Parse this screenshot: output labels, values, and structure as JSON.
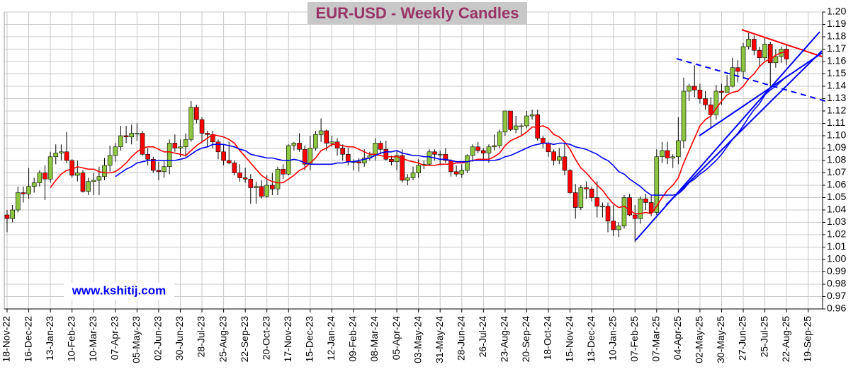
{
  "chart_data": {
    "type": "candlestick",
    "title": "EUR-USD - Weekly Candles",
    "watermark": "www.kshitij.com",
    "up_color": "#8dc63f",
    "down_color": "#ff0000",
    "grid": true,
    "ylim": [
      0.96,
      1.2
    ],
    "yticks": [
      0.96,
      0.97,
      0.98,
      0.99,
      {
        "value": 1,
        "label": "1.00"
      },
      1.01,
      1.02,
      1.03,
      1.04,
      1.05,
      1.06,
      1.07,
      1.08,
      1.09,
      {
        "value": 1.1,
        "label": "1.10"
      },
      1.11,
      1.12,
      1.13,
      1.14,
      1.15,
      1.16,
      1.17,
      1.18,
      1.19,
      {
        "value": 1.2,
        "label": "1.20"
      }
    ],
    "categories": [
      "18-Nov-22",
      null,
      null,
      null,
      "16-Dec-22",
      null,
      null,
      null,
      "13-Jan-23",
      null,
      null,
      null,
      "10-Feb-23",
      null,
      null,
      null,
      "10-Mar-23",
      null,
      null,
      null,
      "07-Apr-23",
      null,
      null,
      null,
      "05-May-23",
      null,
      null,
      null,
      "02-Jun-23",
      null,
      null,
      null,
      "30-Jun-23",
      null,
      null,
      null,
      "28-Jul-23",
      null,
      null,
      null,
      "25-Aug-23",
      null,
      null,
      null,
      "22-Sep-23",
      null,
      null,
      null,
      "20-Oct-23",
      null,
      null,
      null,
      "17-Nov-23",
      null,
      null,
      null,
      "15-Dec-23",
      null,
      null,
      null,
      "12-Jan-24",
      null,
      null,
      null,
      "09-Feb-24",
      null,
      null,
      null,
      "08-Mar-24",
      null,
      null,
      null,
      "05-Apr-24",
      null,
      null,
      null,
      "03-May-24",
      null,
      null,
      null,
      "31-May-24",
      null,
      null,
      null,
      "28-Jun-24",
      null,
      null,
      null,
      "26-Jul-24",
      null,
      null,
      null,
      "23-Aug-24",
      null,
      null,
      null,
      "20-Sep-24",
      null,
      null,
      null,
      "18-Oct-24",
      null,
      null,
      null,
      "15-Nov-24",
      null,
      null,
      null,
      "13-Dec-24",
      null,
      null,
      null,
      "10-Jan-25",
      null,
      null,
      null,
      "07-Feb-25",
      null,
      null,
      null,
      "07-Mar-25",
      null,
      null,
      null,
      "04-Apr-25",
      null,
      null,
      null,
      "02-May-25",
      null,
      null,
      null,
      "30-May-25",
      null,
      null,
      null,
      "27-Jun-25",
      null,
      null,
      null,
      "25-Jul-25",
      null,
      null,
      null,
      "22-Aug-25",
      null,
      null,
      null,
      "19-Sep-25"
    ],
    "ohlc": [
      [
        1.036,
        1.04,
        1.022,
        1.033
      ],
      [
        1.033,
        1.044,
        1.03,
        1.04
      ],
      [
        1.04,
        1.059,
        1.038,
        1.054
      ],
      [
        1.054,
        1.059,
        1.046,
        1.053
      ],
      [
        1.053,
        1.074,
        1.049,
        1.059
      ],
      [
        1.059,
        1.066,
        1.054,
        1.062
      ],
      [
        1.062,
        1.072,
        1.059,
        1.07
      ],
      [
        1.07,
        1.076,
        1.048,
        1.065
      ],
      [
        1.065,
        1.087,
        1.062,
        1.083
      ],
      [
        1.083,
        1.093,
        1.077,
        1.086
      ],
      [
        1.086,
        1.093,
        1.08,
        1.087
      ],
      [
        1.087,
        1.103,
        1.078,
        1.08
      ],
      [
        1.08,
        1.081,
        1.066,
        1.068
      ],
      [
        1.068,
        1.08,
        1.063,
        1.07
      ],
      [
        1.07,
        1.072,
        1.054,
        1.055
      ],
      [
        1.055,
        1.066,
        1.052,
        1.063
      ],
      [
        1.063,
        1.07,
        1.052,
        1.064
      ],
      [
        1.064,
        1.075,
        1.052,
        1.067
      ],
      [
        1.067,
        1.082,
        1.064,
        1.076
      ],
      [
        1.076,
        1.092,
        1.071,
        1.084
      ],
      [
        1.084,
        1.094,
        1.079,
        1.091
      ],
      [
        1.091,
        1.108,
        1.088,
        1.1
      ],
      [
        1.1,
        1.108,
        1.094,
        1.099
      ],
      [
        1.099,
        1.109,
        1.093,
        1.102
      ],
      [
        1.102,
        1.11,
        1.096,
        1.102
      ],
      [
        1.102,
        1.104,
        1.084,
        1.085
      ],
      [
        1.085,
        1.09,
        1.076,
        1.081
      ],
      [
        1.081,
        1.083,
        1.07,
        1.072
      ],
      [
        1.072,
        1.079,
        1.064,
        1.071
      ],
      [
        1.071,
        1.08,
        1.066,
        1.075
      ],
      [
        1.075,
        1.097,
        1.069,
        1.094
      ],
      [
        1.094,
        1.101,
        1.087,
        1.09
      ],
      [
        1.09,
        1.097,
        1.083,
        1.091
      ],
      [
        1.091,
        1.102,
        1.083,
        1.097
      ],
      [
        1.097,
        1.128,
        1.095,
        1.123
      ],
      [
        1.123,
        1.125,
        1.11,
        1.113
      ],
      [
        1.113,
        1.115,
        1.094,
        1.102
      ],
      [
        1.102,
        1.104,
        1.091,
        1.101
      ],
      [
        1.101,
        1.104,
        1.09,
        1.095
      ],
      [
        1.095,
        1.097,
        1.081,
        1.087
      ],
      [
        1.087,
        1.093,
        1.076,
        1.08
      ],
      [
        1.08,
        1.095,
        1.077,
        1.078
      ],
      [
        1.078,
        1.08,
        1.068,
        1.07
      ],
      [
        1.07,
        1.077,
        1.063,
        1.066
      ],
      [
        1.066,
        1.074,
        1.062,
        1.065
      ],
      [
        1.065,
        1.069,
        1.045,
        1.058
      ],
      [
        1.058,
        1.063,
        1.045,
        1.059
      ],
      [
        1.059,
        1.064,
        1.049,
        1.051
      ],
      [
        1.051,
        1.068,
        1.05,
        1.06
      ],
      [
        1.06,
        1.07,
        1.052,
        1.057
      ],
      [
        1.057,
        1.075,
        1.052,
        1.073
      ],
      [
        1.073,
        1.077,
        1.065,
        1.069
      ],
      [
        1.069,
        1.093,
        1.068,
        1.092
      ],
      [
        1.092,
        1.095,
        1.088,
        1.094
      ],
      [
        1.094,
        1.102,
        1.087,
        1.089
      ],
      [
        1.089,
        1.092,
        1.072,
        1.077
      ],
      [
        1.077,
        1.1,
        1.072,
        1.09
      ],
      [
        1.09,
        1.104,
        1.088,
        1.101
      ],
      [
        1.101,
        1.114,
        1.095,
        1.104
      ],
      [
        1.104,
        1.105,
        1.088,
        1.094
      ],
      [
        1.094,
        1.1,
        1.091,
        1.095
      ],
      [
        1.095,
        1.098,
        1.084,
        1.09
      ],
      [
        1.09,
        1.093,
        1.08,
        1.085
      ],
      [
        1.085,
        1.09,
        1.076,
        1.079
      ],
      [
        1.079,
        1.081,
        1.072,
        1.079
      ],
      [
        1.079,
        1.082,
        1.071,
        1.078
      ],
      [
        1.078,
        1.089,
        1.075,
        1.082
      ],
      [
        1.082,
        1.087,
        1.08,
        1.084
      ],
      [
        1.084,
        1.098,
        1.08,
        1.094
      ],
      [
        1.094,
        1.096,
        1.085,
        1.089
      ],
      [
        1.089,
        1.096,
        1.08,
        1.081
      ],
      [
        1.081,
        1.084,
        1.076,
        1.079
      ],
      [
        1.079,
        1.088,
        1.072,
        1.084
      ],
      [
        1.084,
        1.089,
        1.062,
        1.064
      ],
      [
        1.064,
        1.069,
        1.06,
        1.066
      ],
      [
        1.066,
        1.075,
        1.064,
        1.07
      ],
      [
        1.07,
        1.081,
        1.066,
        1.076
      ],
      [
        1.076,
        1.08,
        1.073,
        1.077
      ],
      [
        1.077,
        1.089,
        1.076,
        1.087
      ],
      [
        1.087,
        1.089,
        1.08,
        1.085
      ],
      [
        1.085,
        1.088,
        1.076,
        1.085
      ],
      [
        1.085,
        1.09,
        1.078,
        1.08
      ],
      [
        1.08,
        1.081,
        1.067,
        1.071
      ],
      [
        1.071,
        1.076,
        1.067,
        1.069
      ],
      [
        1.069,
        1.077,
        1.066,
        1.072
      ],
      [
        1.072,
        1.085,
        1.07,
        1.084
      ],
      [
        1.084,
        1.093,
        1.079,
        1.091
      ],
      [
        1.091,
        1.095,
        1.086,
        1.088
      ],
      [
        1.088,
        1.09,
        1.08,
        1.086
      ],
      [
        1.086,
        1.093,
        1.078,
        1.091
      ],
      [
        1.091,
        1.101,
        1.088,
        1.092
      ],
      [
        1.092,
        1.105,
        1.09,
        1.103
      ],
      [
        1.103,
        1.12,
        1.1,
        1.12
      ],
      [
        1.12,
        1.12,
        1.104,
        1.105
      ],
      [
        1.105,
        1.116,
        1.102,
        1.108
      ],
      [
        1.108,
        1.11,
        1.1,
        1.108
      ],
      [
        1.108,
        1.12,
        1.106,
        1.116
      ],
      [
        1.116,
        1.121,
        1.113,
        1.117
      ],
      [
        1.117,
        1.121,
        1.096,
        1.098
      ],
      [
        1.098,
        1.1,
        1.09,
        1.094
      ],
      [
        1.094,
        1.095,
        1.083,
        1.087
      ],
      [
        1.087,
        1.089,
        1.076,
        1.08
      ],
      [
        1.08,
        1.09,
        1.077,
        1.083
      ],
      [
        1.083,
        1.094,
        1.068,
        1.072
      ],
      [
        1.072,
        1.073,
        1.053,
        1.054
      ],
      [
        1.054,
        1.061,
        1.033,
        1.042
      ],
      [
        1.042,
        1.06,
        1.04,
        1.058
      ],
      [
        1.058,
        1.063,
        1.049,
        1.057
      ],
      [
        1.057,
        1.059,
        1.047,
        1.05
      ],
      [
        1.05,
        1.063,
        1.034,
        1.043
      ],
      [
        1.043,
        1.046,
        1.034,
        1.043
      ],
      [
        1.043,
        1.046,
        1.022,
        1.031
      ],
      [
        1.031,
        1.044,
        1.019,
        1.024
      ],
      [
        1.024,
        1.03,
        1.018,
        1.027
      ],
      [
        1.027,
        1.052,
        1.025,
        1.05
      ],
      [
        1.05,
        1.053,
        1.035,
        1.036
      ],
      [
        1.036,
        1.044,
        1.014,
        1.033
      ],
      [
        1.033,
        1.051,
        1.029,
        1.049
      ],
      [
        1.049,
        1.053,
        1.04,
        1.046
      ],
      [
        1.046,
        1.052,
        1.035,
        1.038
      ],
      [
        1.038,
        1.089,
        1.036,
        1.083
      ],
      [
        1.083,
        1.095,
        1.078,
        1.088
      ],
      [
        1.088,
        1.095,
        1.077,
        1.082
      ],
      [
        1.082,
        1.085,
        1.074,
        1.083
      ],
      [
        1.083,
        1.115,
        1.077,
        1.096
      ],
      [
        1.096,
        1.147,
        1.09,
        1.136
      ],
      [
        1.136,
        1.142,
        1.128,
        1.14
      ],
      [
        1.14,
        1.157,
        1.131,
        1.137
      ],
      [
        1.137,
        1.142,
        1.126,
        1.13
      ],
      [
        1.13,
        1.136,
        1.121,
        1.125
      ],
      [
        1.125,
        1.131,
        1.107,
        1.117
      ],
      [
        1.117,
        1.141,
        1.113,
        1.136
      ],
      [
        1.136,
        1.142,
        1.125,
        1.135
      ],
      [
        1.135,
        1.149,
        1.135,
        1.14
      ],
      [
        1.14,
        1.163,
        1.139,
        1.155
      ],
      [
        1.155,
        1.161,
        1.143,
        1.152
      ],
      [
        1.152,
        1.175,
        1.146,
        1.172
      ],
      [
        1.172,
        1.183,
        1.17,
        1.178
      ],
      [
        1.178,
        1.181,
        1.165,
        1.169
      ],
      [
        1.169,
        1.172,
        1.156,
        1.163
      ],
      [
        1.163,
        1.179,
        1.16,
        1.174
      ],
      [
        1.174,
        1.176,
        1.139,
        1.159
      ],
      [
        1.159,
        1.17,
        1.155,
        1.164
      ],
      [
        1.164,
        1.172,
        1.159,
        1.17
      ],
      [
        1.17,
        1.174,
        1.157,
        1.162
      ],
      null,
      null,
      null,
      null
    ],
    "lines": [
      {
        "color": "#ff0000",
        "values": [
          null,
          null,
          null,
          null,
          null,
          null,
          null,
          null,
          1.058,
          1.064,
          1.069,
          1.072,
          1.073,
          1.075,
          1.074,
          1.073,
          1.073,
          1.071,
          1.07,
          1.07,
          1.071,
          1.074,
          1.078,
          1.083,
          1.087,
          1.09,
          1.091,
          1.091,
          1.089,
          1.087,
          1.087,
          1.086,
          1.085,
          1.084,
          1.088,
          1.092,
          1.095,
          1.098,
          1.101,
          1.1,
          1.099,
          1.097,
          1.094,
          1.088,
          1.083,
          1.078,
          1.073,
          1.068,
          1.065,
          1.063,
          1.062,
          1.062,
          1.065,
          1.068,
          1.072,
          1.074,
          1.078,
          1.082,
          1.088,
          1.09,
          1.093,
          1.093,
          1.092,
          1.091,
          1.091,
          1.089,
          1.087,
          1.085,
          1.085,
          1.084,
          1.083,
          1.083,
          1.083,
          1.082,
          1.08,
          1.079,
          1.078,
          1.076,
          1.076,
          1.076,
          1.077,
          1.077,
          1.077,
          1.078,
          1.078,
          1.079,
          1.08,
          1.081,
          1.081,
          1.081,
          1.083,
          1.086,
          1.092,
          1.096,
          1.098,
          1.1,
          1.103,
          1.107,
          1.107,
          1.108,
          1.106,
          1.101,
          1.099,
          1.095,
          1.089,
          1.081,
          1.074,
          1.07,
          1.065,
          1.06,
          1.056,
          1.05,
          1.045,
          1.042,
          1.043,
          1.04,
          1.037,
          1.037,
          1.038,
          1.037,
          1.043,
          1.05,
          1.056,
          1.06,
          1.066,
          1.078,
          1.088,
          1.098,
          1.108,
          1.113,
          1.116,
          1.122,
          1.128,
          1.133,
          1.135,
          1.136,
          1.14,
          1.146,
          1.15,
          1.156,
          1.16,
          1.162,
          1.165,
          1.167,
          1.168,
          null,
          null,
          null,
          null
        ]
      },
      {
        "color": "#0000ff",
        "values": [
          null,
          null,
          null,
          null,
          null,
          null,
          null,
          null,
          null,
          null,
          null,
          null,
          null,
          null,
          null,
          null,
          null,
          null,
          null,
          null,
          1.067,
          1.07,
          1.073,
          1.075,
          1.078,
          1.079,
          1.08,
          1.08,
          1.08,
          1.08,
          1.08,
          1.08,
          1.081,
          1.082,
          1.085,
          1.088,
          1.09,
          1.091,
          1.093,
          1.093,
          1.093,
          1.092,
          1.091,
          1.089,
          1.088,
          1.085,
          1.084,
          1.083,
          1.082,
          1.082,
          1.081,
          1.08,
          1.08,
          1.081,
          1.08,
          1.078,
          1.077,
          1.077,
          1.077,
          1.077,
          1.077,
          1.078,
          1.078,
          1.079,
          1.079,
          1.08,
          1.081,
          1.082,
          1.084,
          1.086,
          1.087,
          1.087,
          1.088,
          1.086,
          1.085,
          1.084,
          1.084,
          1.083,
          1.083,
          1.082,
          1.081,
          1.081,
          1.08,
          1.079,
          1.079,
          1.079,
          1.08,
          1.08,
          1.08,
          1.08,
          1.08,
          1.081,
          1.083,
          1.084,
          1.086,
          1.088,
          1.09,
          1.092,
          1.093,
          1.094,
          1.094,
          1.093,
          1.094,
          1.094,
          1.093,
          1.091,
          1.09,
          1.089,
          1.087,
          1.085,
          1.082,
          1.08,
          1.076,
          1.071,
          1.069,
          1.065,
          1.062,
          1.059,
          1.055,
          1.052,
          1.052,
          1.052,
          1.052,
          1.052,
          1.053,
          1.057,
          1.062,
          1.065,
          1.069,
          1.072,
          1.076,
          1.08,
          1.085,
          1.091,
          1.097,
          1.102,
          1.108,
          1.115,
          1.121,
          1.126,
          1.133,
          1.137,
          1.14,
          1.144,
          1.148,
          null,
          null,
          null,
          null
        ]
      }
    ]
  }
}
